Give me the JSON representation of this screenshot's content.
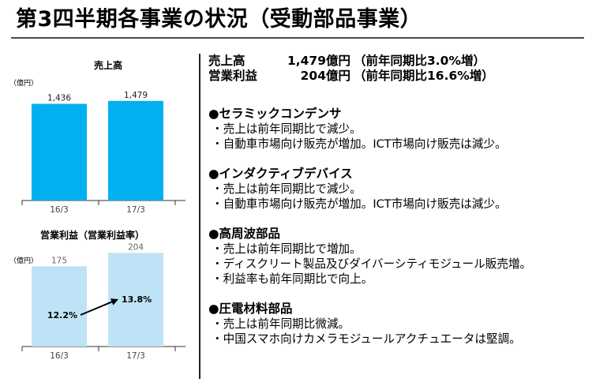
{
  "title": "第3四半期各事業の状況（受動部品事業）",
  "chart_data": [
    {
      "type": "bar",
      "title": "売上高",
      "unit": "（億円）",
      "categories": [
        "16/3",
        "17/3"
      ],
      "values": [
        1436,
        1479
      ],
      "value_labels": [
        "1,436",
        "1,479"
      ],
      "ylim": [
        0,
        1700
      ],
      "colors": [
        "#00b0f0",
        "#00b0f0"
      ]
    },
    {
      "type": "bar",
      "title": "営業利益（営業利益率）",
      "unit": "（億円）",
      "categories": [
        "16/3",
        "17/3"
      ],
      "values": [
        175,
        204
      ],
      "value_labels": [
        "175",
        "204"
      ],
      "ylim": [
        0,
        215
      ],
      "colors": [
        "#bfe3f6",
        "#bfe3f6"
      ],
      "rates": [
        12.2,
        13.8
      ],
      "rate_labels": [
        "12.2%",
        "13.8%"
      ]
    }
  ],
  "summary": [
    {
      "label": "売上高",
      "value": "1,479億円",
      "note": "（前年同期比3.0%増）"
    },
    {
      "label": "営業利益",
      "value": "204億円",
      "note": "（前年同期比16.6%増）"
    }
  ],
  "segments": [
    {
      "title": "●セラミックコンデンサ",
      "items": [
        "・売上は前年同期比で減少。",
        "・自動車市場向け販売が増加。ICT市場向け販売は減少。"
      ]
    },
    {
      "title": "●インダクティブデバイス",
      "items": [
        "・売上は前年同期比で減少。",
        "・自動車市場向け販売が増加。ICT市場向け販売は減少。"
      ]
    },
    {
      "title": "●高周波部品",
      "items": [
        "・売上は前年同期比で増加。",
        "・ディスクリート製品及びダイバーシティモジュール販売増。",
        "・利益率も前年同期比で向上。"
      ]
    },
    {
      "title": "●圧電材料部品",
      "items": [
        "・売上は前年同期比微減。",
        "・中国スマホ向けカメラモジュールアクチュエータは堅調。"
      ]
    }
  ]
}
